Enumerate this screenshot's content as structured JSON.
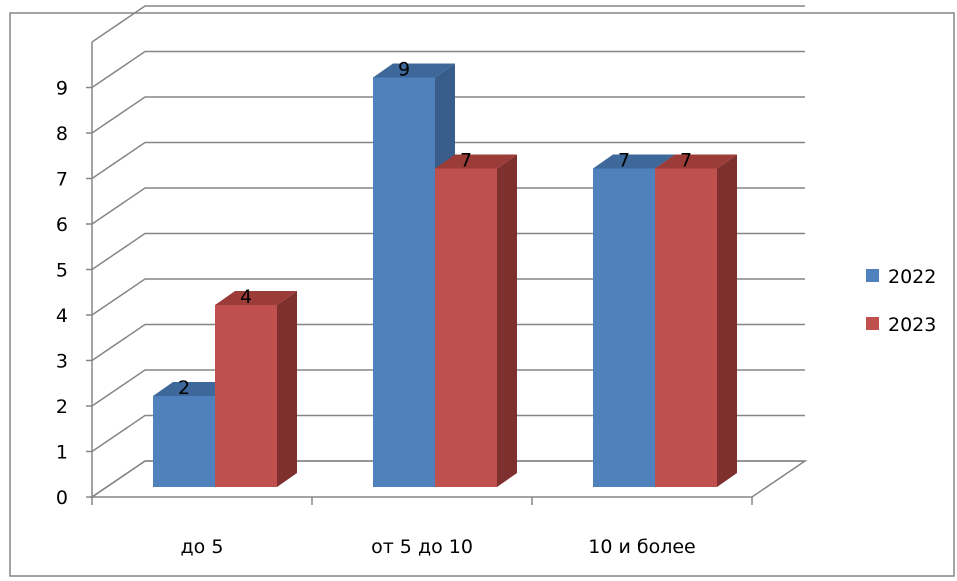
{
  "chart_data": {
    "type": "bar",
    "categories": [
      "до 5",
      "от 5 до 10",
      "10 и более"
    ],
    "series": [
      {
        "name": "2022",
        "values": [
          2,
          9,
          7
        ],
        "color": "#4f81bd",
        "top_color": "#3f689a",
        "side_color": "#385d8a"
      },
      {
        "name": "2023",
        "values": [
          4,
          7,
          7
        ],
        "color": "#c0504d",
        "top_color": "#9b3c39",
        "side_color": "#7d302e"
      }
    ],
    "y_ticks": [
      "0",
      "1",
      "2",
      "3",
      "4",
      "5",
      "6",
      "7",
      "8",
      "9"
    ],
    "ylim": [
      0,
      9
    ],
    "grid": true,
    "legend": "right",
    "three_d": true
  }
}
